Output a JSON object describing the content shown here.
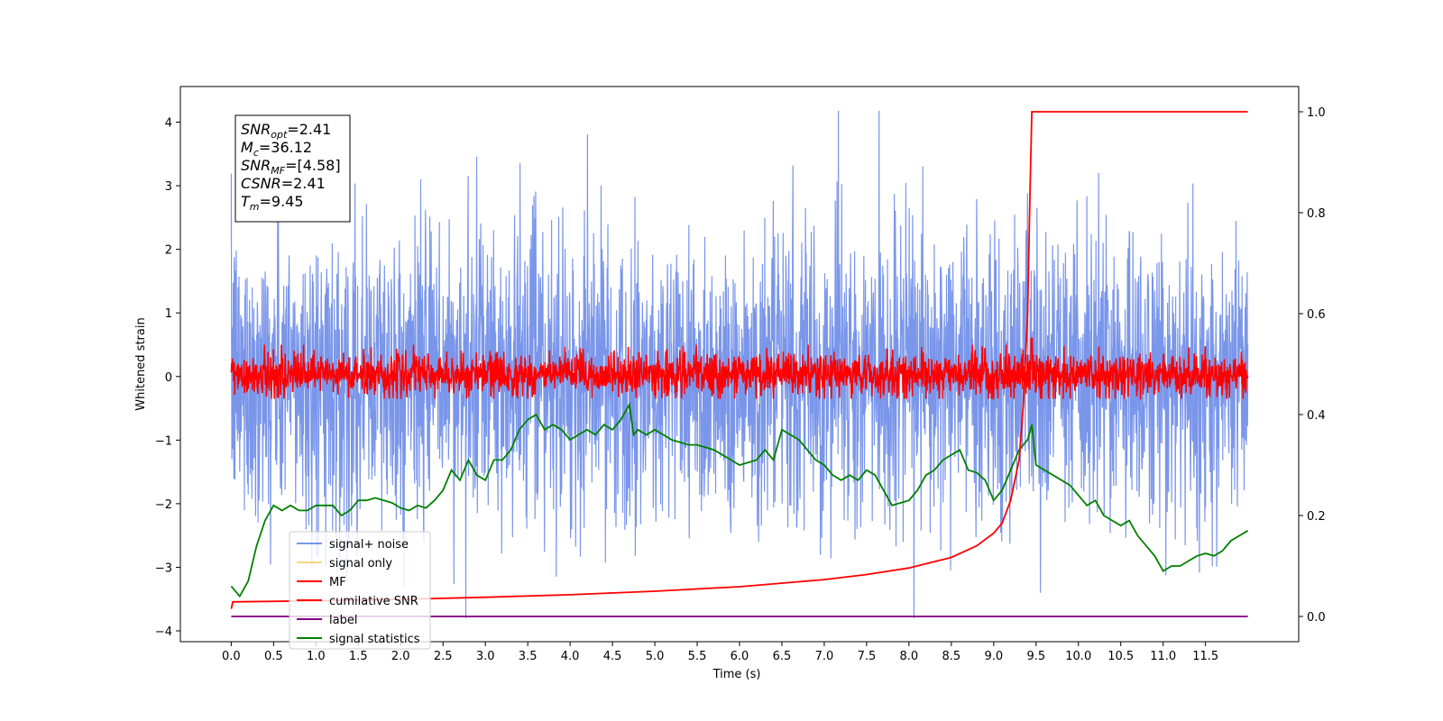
{
  "chart_data": {
    "type": "line",
    "xlabel": "Time (s)",
    "ylabel": "Whitened strain",
    "xlim": [
      -0.6,
      12.6
    ],
    "ylim": [
      -4.17,
      4.56
    ],
    "y2lim": [
      -0.05,
      1.05
    ],
    "xticks": [
      "0.0",
      "0.5",
      "1.0",
      "1.5",
      "2.0",
      "2.5",
      "3.0",
      "3.5",
      "4.0",
      "4.5",
      "5.0",
      "5.5",
      "6.0",
      "6.5",
      "7.0",
      "7.5",
      "8.0",
      "8.5",
      "9.0",
      "9.5",
      "10.0",
      "10.5",
      "11.0",
      "11.5"
    ],
    "yticks": [
      "−4",
      "−3",
      "−2",
      "−1",
      "0",
      "1",
      "2",
      "3",
      "4"
    ],
    "y2ticks": [
      "0.0",
      "0.2",
      "0.4",
      "0.6",
      "0.8",
      "1.0"
    ],
    "annotation": {
      "lines": [
        {
          "sym": "SNR",
          "sub": "opt",
          "val": "=2.41"
        },
        {
          "sym": "M",
          "sub": "c",
          "val": "=36.12"
        },
        {
          "sym": "SNR",
          "sub": "MF",
          "val": "=[4.58]"
        },
        {
          "sym": "CSNR",
          "sub": "",
          "val": "=2.41"
        },
        {
          "sym": "T",
          "sub": "m",
          "val": "=9.45"
        }
      ]
    },
    "legend": {
      "placement": "lower-left",
      "entries": [
        {
          "label": "signal+ noise",
          "color": "#4169E1",
          "alpha": 0.7
        },
        {
          "label": "signal only",
          "color": "#FFA500",
          "alpha": 0.5
        },
        {
          "label": "MF",
          "color": "#FF0000",
          "alpha": 1
        },
        {
          "label": "cumilative SNR",
          "color": "#FF0000",
          "alpha": 1
        },
        {
          "label": "label",
          "color": "#800080",
          "alpha": 1
        },
        {
          "label": "signal statistics",
          "color": "#008000",
          "alpha": 1
        }
      ]
    },
    "series": [
      {
        "name": "signal+ noise",
        "axis": "left",
        "x_range": [
          0,
          12
        ],
        "envelope_upper": 2.5,
        "envelope_lower": -2.5,
        "peak_max": 4.18,
        "peak_min": -3.8
      },
      {
        "name": "MF",
        "axis": "left",
        "x_range": [
          0,
          12
        ],
        "envelope_upper": 0.5,
        "envelope_lower": -0.35,
        "peak": {
          "x": 9.45,
          "y": 0.6
        }
      },
      {
        "name": "cumilative SNR",
        "axis": "right",
        "x": [
          0.0,
          0.02,
          1.0,
          2.0,
          3.0,
          4.0,
          5.0,
          6.0,
          7.0,
          7.5,
          8.0,
          8.5,
          8.8,
          9.0,
          9.1,
          9.2,
          9.3,
          9.35,
          9.4,
          9.43,
          9.45,
          10.0,
          11.0,
          12.0
        ],
        "values": [
          0.015,
          0.029,
          0.031,
          0.034,
          0.038,
          0.043,
          0.05,
          0.059,
          0.073,
          0.083,
          0.096,
          0.117,
          0.14,
          0.165,
          0.185,
          0.23,
          0.31,
          0.42,
          0.6,
          0.85,
          1.0,
          1.0,
          1.0,
          1.0
        ]
      },
      {
        "name": "label",
        "axis": "right",
        "x": [
          0,
          12
        ],
        "values": [
          0.0,
          0.0
        ]
      },
      {
        "name": "signal statistics",
        "axis": "right",
        "x": [
          0.0,
          0.1,
          0.2,
          0.3,
          0.4,
          0.5,
          0.6,
          0.7,
          0.8,
          0.9,
          1.0,
          1.1,
          1.2,
          1.3,
          1.4,
          1.5,
          1.6,
          1.7,
          1.8,
          1.9,
          2.0,
          2.1,
          2.2,
          2.3,
          2.4,
          2.5,
          2.6,
          2.7,
          2.8,
          2.9,
          3.0,
          3.1,
          3.2,
          3.3,
          3.4,
          3.5,
          3.6,
          3.7,
          3.8,
          3.9,
          4.0,
          4.1,
          4.2,
          4.3,
          4.4,
          4.5,
          4.6,
          4.7,
          4.75,
          4.8,
          4.9,
          5.0,
          5.1,
          5.2,
          5.3,
          5.4,
          5.5,
          5.6,
          5.7,
          5.8,
          5.9,
          6.0,
          6.1,
          6.2,
          6.3,
          6.4,
          6.5,
          6.6,
          6.7,
          6.8,
          6.9,
          7.0,
          7.1,
          7.2,
          7.3,
          7.4,
          7.5,
          7.6,
          7.7,
          7.8,
          7.9,
          8.0,
          8.1,
          8.2,
          8.3,
          8.4,
          8.5,
          8.6,
          8.7,
          8.8,
          8.9,
          9.0,
          9.1,
          9.2,
          9.3,
          9.4,
          9.45,
          9.5,
          9.6,
          9.7,
          9.8,
          9.9,
          10.0,
          10.1,
          10.2,
          10.3,
          10.4,
          10.5,
          10.6,
          10.7,
          10.8,
          10.9,
          11.0,
          11.1,
          11.2,
          11.3,
          11.4,
          11.5,
          11.6,
          11.7,
          11.8,
          11.9,
          12.0
        ],
        "values": [
          0.06,
          0.04,
          0.07,
          0.14,
          0.19,
          0.22,
          0.21,
          0.22,
          0.21,
          0.21,
          0.22,
          0.22,
          0.22,
          0.2,
          0.21,
          0.23,
          0.23,
          0.235,
          0.23,
          0.225,
          0.215,
          0.21,
          0.22,
          0.215,
          0.23,
          0.25,
          0.29,
          0.27,
          0.31,
          0.28,
          0.27,
          0.31,
          0.31,
          0.33,
          0.37,
          0.39,
          0.4,
          0.37,
          0.38,
          0.37,
          0.35,
          0.36,
          0.37,
          0.36,
          0.38,
          0.37,
          0.39,
          0.42,
          0.36,
          0.37,
          0.36,
          0.37,
          0.36,
          0.35,
          0.345,
          0.34,
          0.34,
          0.335,
          0.33,
          0.32,
          0.31,
          0.3,
          0.305,
          0.31,
          0.33,
          0.31,
          0.37,
          0.36,
          0.35,
          0.33,
          0.31,
          0.3,
          0.28,
          0.27,
          0.28,
          0.27,
          0.29,
          0.28,
          0.25,
          0.22,
          0.225,
          0.23,
          0.25,
          0.28,
          0.29,
          0.31,
          0.32,
          0.33,
          0.29,
          0.285,
          0.27,
          0.23,
          0.25,
          0.29,
          0.33,
          0.35,
          0.38,
          0.3,
          0.29,
          0.28,
          0.27,
          0.26,
          0.24,
          0.22,
          0.23,
          0.2,
          0.19,
          0.18,
          0.19,
          0.16,
          0.14,
          0.12,
          0.09,
          0.1,
          0.1,
          0.11,
          0.12,
          0.125,
          0.12,
          0.13,
          0.15,
          0.16,
          0.17
        ]
      }
    ]
  }
}
